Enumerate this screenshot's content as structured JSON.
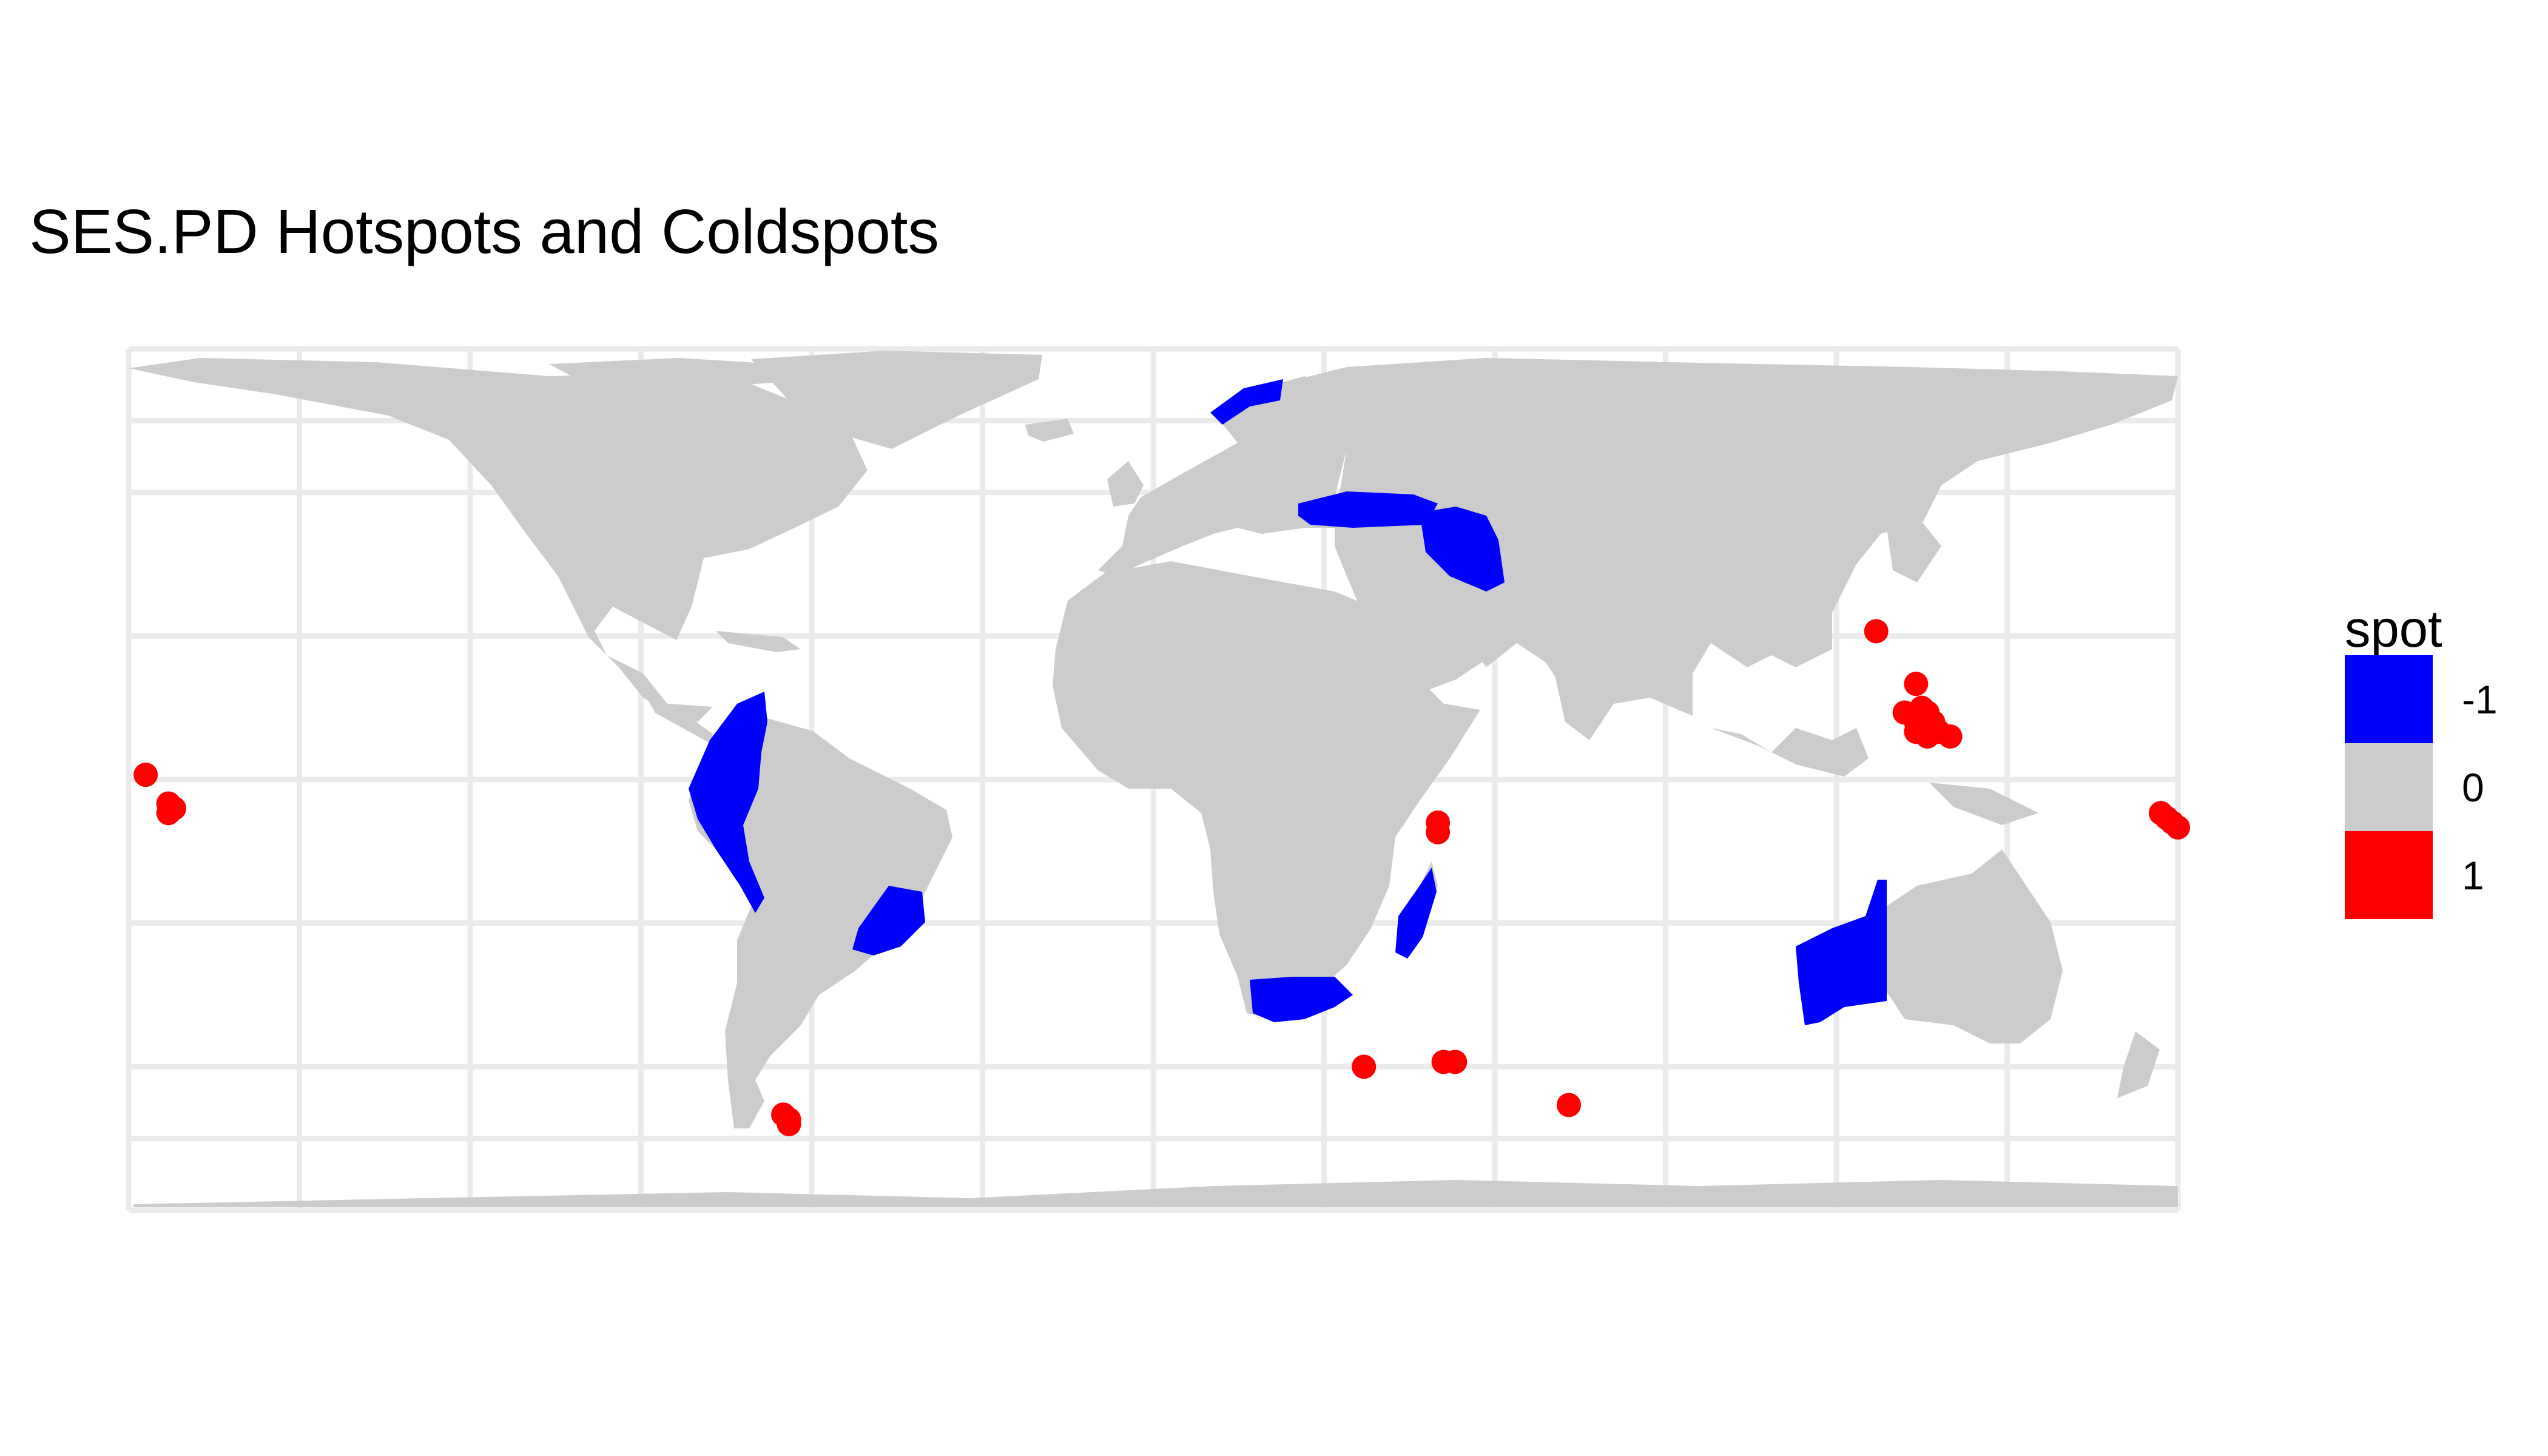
{
  "title": "SES.PD Hotspots and Coldspots",
  "legend": {
    "title": "spot",
    "items": [
      {
        "label": "-1",
        "color": "#0000FF"
      },
      {
        "label": "0",
        "color": "#CCCCCC"
      },
      {
        "label": "1",
        "color": "#FF0000"
      }
    ]
  },
  "map": {
    "projection": "equirectangular",
    "lon_range": [
      -180,
      180
    ],
    "lat_range": [
      -90,
      90
    ],
    "gridlines": true,
    "land_color": "#CCCCCC",
    "grid_color": "#EBEBEB",
    "coldspot_regions": [
      "Scandinavia",
      "Turkey",
      "Iran",
      "Colombia-Ecuador-Peru",
      "Southeastern Brazil",
      "South Africa",
      "Madagascar",
      "Western Australia"
    ],
    "hotspot_points": [
      {
        "lon": -177,
        "lat": 1
      },
      {
        "lon": -173,
        "lat": -5
      },
      {
        "lon": -173,
        "lat": -7
      },
      {
        "lon": -172,
        "lat": -6
      },
      {
        "lon": -65,
        "lat": -70
      },
      {
        "lon": -64,
        "lat": -71
      },
      {
        "lon": -64,
        "lat": -72
      },
      {
        "lon": 50,
        "lat": -9
      },
      {
        "lon": 50,
        "lat": -11
      },
      {
        "lon": 37,
        "lat": -60
      },
      {
        "lon": 51,
        "lat": -59
      },
      {
        "lon": 53,
        "lat": -59
      },
      {
        "lon": 73,
        "lat": -68
      },
      {
        "lon": 127,
        "lat": 31
      },
      {
        "lon": 134,
        "lat": 20
      },
      {
        "lon": 132,
        "lat": 14
      },
      {
        "lon": 135,
        "lat": 15
      },
      {
        "lon": 136,
        "lat": 14
      },
      {
        "lon": 134,
        "lat": 12
      },
      {
        "lon": 137,
        "lat": 11
      },
      {
        "lon": 138,
        "lat": 10
      },
      {
        "lon": 136,
        "lat": 9
      },
      {
        "lon": 134,
        "lat": 10
      },
      {
        "lon": 137,
        "lat": 12
      },
      {
        "lon": 140,
        "lat": 9
      },
      {
        "lon": 177,
        "lat": -7
      },
      {
        "lon": 178,
        "lat": -8
      },
      {
        "lon": 179,
        "lat": -9
      },
      {
        "lon": 180,
        "lat": -10
      }
    ]
  }
}
